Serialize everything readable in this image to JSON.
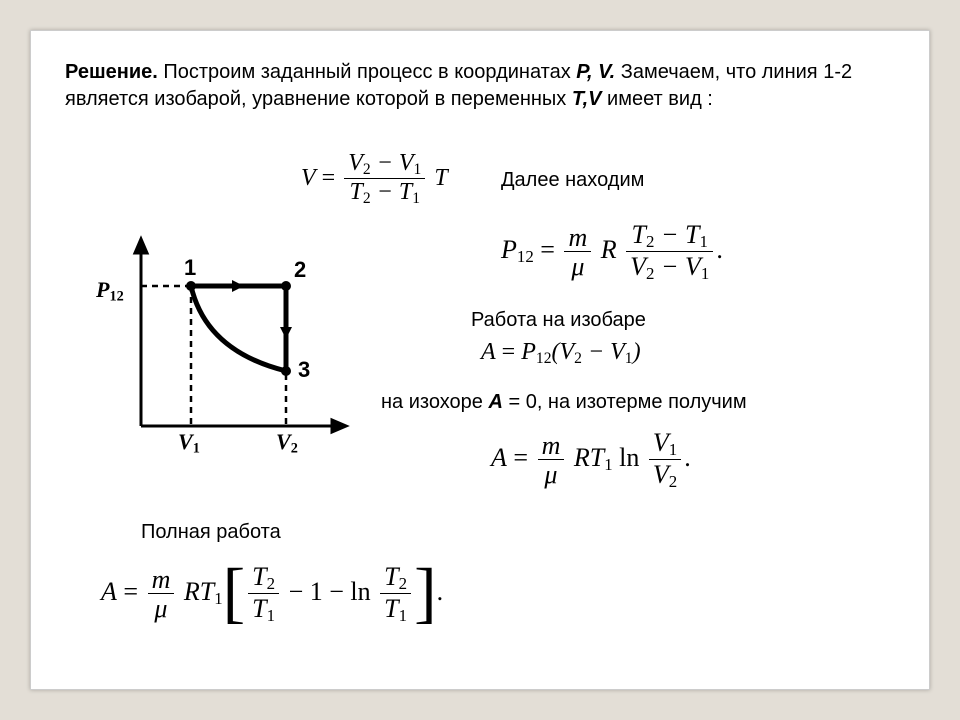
{
  "intro": {
    "heading": "Решение.",
    "body": " Построим заданный процесс в координатах ",
    "pv": "P, V.",
    "tail1": " Замечаем, что линия 1-2 является изобарой, уравнение которой в переменных ",
    "tv": "T,V",
    "tail2": " имеет вид :"
  },
  "labels": {
    "next": "Далее находим",
    "isobaric": "Работа на изобаре",
    "isochoric_prefix": "на изохоре ",
    "isochoric_A": "A",
    "isochoric_eq": " = 0, на изотерме получим",
    "full_work": "Полная работа"
  },
  "formulas": {
    "eq1": {
      "lhs": "V",
      "eq": " = ",
      "num": "V<sub>2</sub> − V<sub>1</sub>",
      "den": "T<sub>2</sub> − T<sub>1</sub>",
      "tail": " T"
    },
    "eq2": {
      "lhs": "P<sub>12</sub>",
      "eq": " = ",
      "f1_num": "m",
      "f1_den": "μ",
      "mid": " R ",
      "f2_num": "T<sub>2</sub> − T<sub>1</sub>",
      "f2_den": "V<sub>2</sub> − V<sub>1</sub>",
      "period": "."
    },
    "eq3": {
      "lhs": "A",
      "eq": " = ",
      "rhs": "P<sub>12</sub>(V<sub>2</sub> − V<sub>1</sub>)"
    },
    "eq4": {
      "lhs": "A",
      "eq": " = ",
      "f1_num": "m",
      "f1_den": "μ",
      "mid": " RT<sub>1</sub> ",
      "ln": "ln ",
      "f2_num": "V<sub>1</sub>",
      "f2_den": "V<sub>2</sub>",
      "period": "."
    },
    "eq5": {
      "lhs": "A",
      "eq": " = ",
      "f1_num": "m",
      "f1_den": "μ",
      "mid": " RT<sub>1</sub>",
      "lb": "[",
      "f2_num": "T<sub>2</sub>",
      "f2_den": "T<sub>1</sub>",
      "inner": " − 1 − ln ",
      "f3_num": "T<sub>2</sub>",
      "f3_den": "T<sub>1</sub>",
      "rb": "]",
      "period": "."
    }
  },
  "diagram": {
    "labels": {
      "p": "P<sub>12</sub>",
      "v1": "V<sub>1</sub>",
      "v2": "V<sub>2</sub>",
      "n1": "1",
      "n2": "2",
      "n3": "3"
    },
    "colors": {
      "stroke": "#000000",
      "bg": "#ffffff"
    }
  },
  "colors": {
    "page_bg": "#e3ded6",
    "slide_bg": "#ffffff",
    "text": "#000000"
  }
}
